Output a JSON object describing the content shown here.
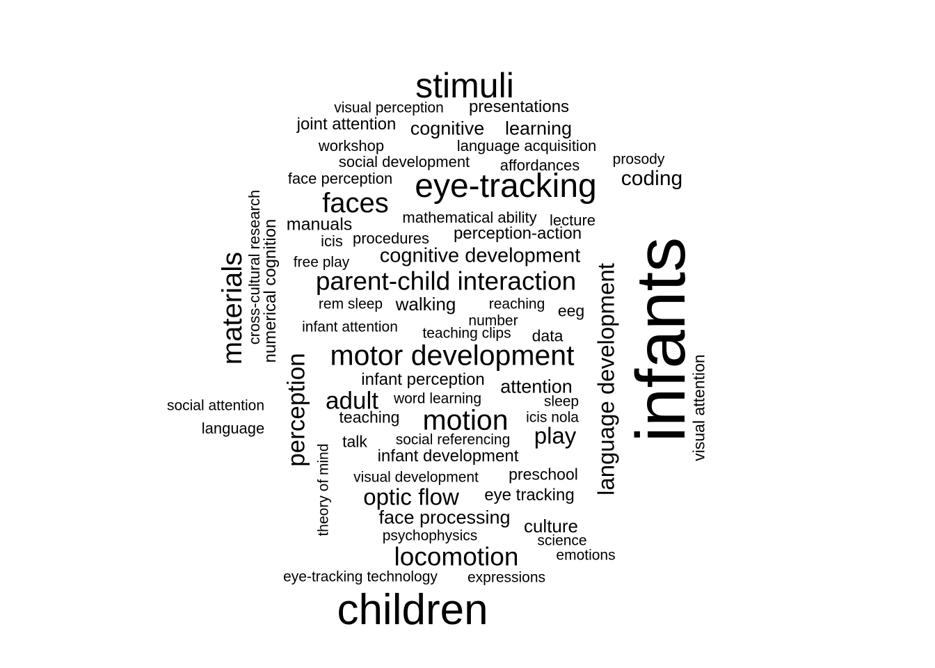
{
  "word_cloud": {
    "text_color": "#000000",
    "background": "#ffffff",
    "words": [
      {
        "text": "infants",
        "size": 100
      },
      {
        "text": "children",
        "size": 62
      },
      {
        "text": "stimuli",
        "size": 50
      },
      {
        "text": "eye-tracking",
        "size": 48
      },
      {
        "text": "motor development",
        "size": 41
      },
      {
        "text": "motion",
        "size": 41
      },
      {
        "text": "faces",
        "size": 40
      },
      {
        "text": "materials",
        "size": 40
      },
      {
        "text": "locomotion",
        "size": 37
      },
      {
        "text": "parent-child interaction",
        "size": 37
      },
      {
        "text": "perception",
        "size": 35
      },
      {
        "text": "adult",
        "size": 35
      },
      {
        "text": "optic flow",
        "size": 33
      },
      {
        "text": "language development",
        "size": 33
      },
      {
        "text": "play",
        "size": 33
      },
      {
        "text": "coding",
        "size": 30
      },
      {
        "text": "cognitive development",
        "size": 29
      },
      {
        "text": "cognitive",
        "size": 27
      },
      {
        "text": "learning",
        "size": 27
      },
      {
        "text": "attention",
        "size": 27
      },
      {
        "text": "face processing",
        "size": 27
      },
      {
        "text": "walking",
        "size": 26
      },
      {
        "text": "culture",
        "size": 26
      },
      {
        "text": "manuals",
        "size": 25
      },
      {
        "text": "perception-action",
        "size": 24
      },
      {
        "text": "presentations",
        "size": 24
      },
      {
        "text": "infant development",
        "size": 24
      },
      {
        "text": "infant perception",
        "size": 24
      },
      {
        "text": "joint attention",
        "size": 24
      },
      {
        "text": "numerical cognition",
        "size": 24
      },
      {
        "text": "eye tracking",
        "size": 24
      },
      {
        "text": "eeg",
        "size": 23
      },
      {
        "text": "preschool",
        "size": 23
      },
      {
        "text": "data",
        "size": 23
      },
      {
        "text": "talk",
        "size": 23
      },
      {
        "text": "teaching",
        "size": 23
      },
      {
        "text": "visual attention",
        "size": 23
      },
      {
        "text": "cross-cultural research",
        "size": 22
      },
      {
        "text": "icis",
        "size": 22
      },
      {
        "text": "procedures",
        "size": 22
      },
      {
        "text": "mathematical ability",
        "size": 22
      },
      {
        "text": "language acquisition",
        "size": 22
      },
      {
        "text": "affordances",
        "size": 22
      },
      {
        "text": "social development",
        "size": 22
      },
      {
        "text": "workshop",
        "size": 22
      },
      {
        "text": "face perception",
        "size": 22
      },
      {
        "text": "language",
        "size": 22
      },
      {
        "text": "lecture",
        "size": 22
      },
      {
        "text": "visual perception",
        "size": 21
      },
      {
        "text": "prosody",
        "size": 21
      },
      {
        "text": "free play",
        "size": 21
      },
      {
        "text": "rem sleep",
        "size": 21
      },
      {
        "text": "reaching",
        "size": 21
      },
      {
        "text": "number",
        "size": 21
      },
      {
        "text": "infant attention",
        "size": 21
      },
      {
        "text": "teaching clips",
        "size": 21
      },
      {
        "text": "word learning",
        "size": 21
      },
      {
        "text": "sleep",
        "size": 21
      },
      {
        "text": "icis nola",
        "size": 21
      },
      {
        "text": "social referencing",
        "size": 21
      },
      {
        "text": "social attention",
        "size": 21
      },
      {
        "text": "visual development",
        "size": 21
      },
      {
        "text": "theory of mind",
        "size": 21
      },
      {
        "text": "psychophysics",
        "size": 21
      },
      {
        "text": "science",
        "size": 21
      },
      {
        "text": "emotions",
        "size": 21
      },
      {
        "text": "eye-tracking technology",
        "size": 21
      },
      {
        "text": "expressions",
        "size": 21
      }
    ]
  }
}
